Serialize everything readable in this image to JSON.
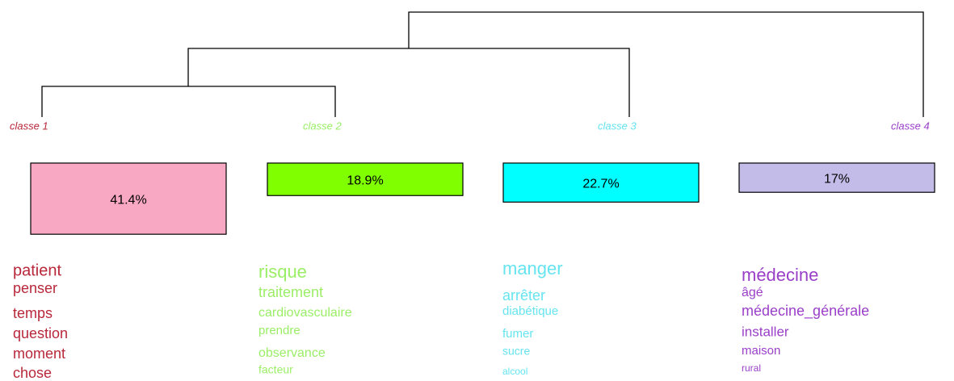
{
  "chart_data": {
    "type": "dendrogram",
    "categories": [
      "classe 1",
      "classe 2",
      "classe 3",
      "classe 4"
    ],
    "values": [
      41.4,
      18.9,
      22.7,
      17
    ],
    "value_labels": [
      "41.4%",
      "18.9%",
      "22.7%",
      "17%"
    ],
    "colors": [
      "#f9a8c4",
      "#7fff00",
      "#00ffff",
      "#c4bce8"
    ],
    "text_colors": [
      "#b8283a",
      "#9aee66",
      "#66e4f0",
      "#9a3fc8"
    ],
    "words": [
      [
        "patient",
        "penser",
        "temps",
        "question",
        "moment",
        "chose"
      ],
      [
        "risque",
        "traitement",
        "cardiovasculaire",
        "prendre",
        "observance",
        "facteur"
      ],
      [
        "manger",
        "arrêter",
        "diabétique",
        "fumer",
        "sucre",
        "alcool"
      ],
      [
        "médecine",
        "âgé",
        "médecine_générale",
        "installer",
        "maison",
        "rural"
      ]
    ]
  }
}
